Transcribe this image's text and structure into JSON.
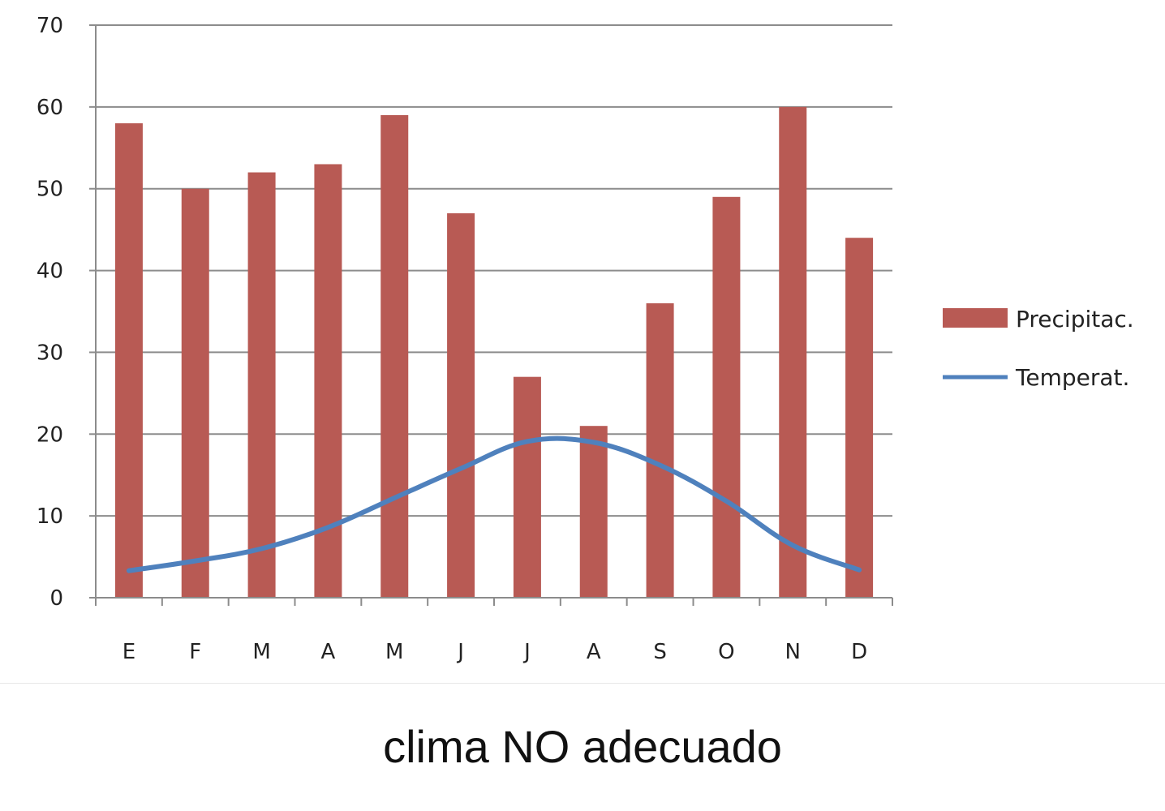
{
  "caption": "clima NO adecuado",
  "chart_data": {
    "type": "bar",
    "categories": [
      "E",
      "F",
      "M",
      "A",
      "M",
      "J",
      "J",
      "A",
      "S",
      "O",
      "N",
      "D"
    ],
    "series": [
      {
        "name": "Precipitac.",
        "type": "bar",
        "color": "#b85a54",
        "values": [
          58,
          50,
          52,
          53,
          59,
          47,
          27,
          21,
          36,
          49,
          60,
          44
        ]
      },
      {
        "name": "Temperat.",
        "type": "line",
        "color": "#4f81bd",
        "values": [
          3.3,
          4.5,
          6.0,
          8.6,
          12.2,
          15.8,
          19.1,
          19.0,
          16.2,
          11.8,
          6.4,
          3.4
        ]
      }
    ],
    "yticks": [
      0,
      10,
      20,
      30,
      40,
      50,
      60,
      70
    ],
    "ylim": [
      0,
      70
    ],
    "grid": true,
    "legend_position": "right"
  }
}
